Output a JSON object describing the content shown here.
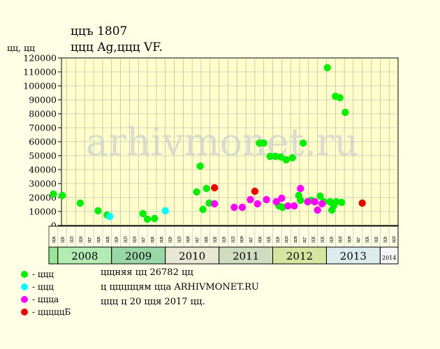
{
  "title": "ццъ 1807",
  "subtitle": "ццц Ag,ццц VF.",
  "ylabel": "цц, цц",
  "colors": {
    "background": "#ffffe6",
    "plot_background": "#ffffcc",
    "grid": "#a8a8a8",
    "green": "#00ee00",
    "cyan": "#00ffff",
    "magenta": "#ff00ff",
    "red": "#ee0000"
  },
  "legend": [
    {
      "label": "- ццц",
      "color": "#00ee00"
    },
    {
      "label": "- ццц",
      "color": "#00ffff"
    },
    {
      "label": "- ццца",
      "color": "#ff00ff"
    },
    {
      "label": "- цццццБ",
      "color": "#ee0000"
    }
  ],
  "notes": [
    "цщняя цц 26782 цц",
    "ц цццццям цца ARHIVMONET.RU",
    "ццц ц 20 цця 2017 цц."
  ],
  "watermark": "arhivmonet.ru",
  "chart_data": {
    "type": "scatter",
    "ylim": [
      0,
      120000
    ],
    "yticks": [
      0,
      10000,
      20000,
      30000,
      40000,
      50000,
      60000,
      70000,
      80000,
      90000,
      100000,
      110000,
      120000
    ],
    "month_labels": [
      "цц",
      "цв",
      "цр",
      "цп",
      "цц",
      "цн",
      "цл",
      "цг",
      "цн",
      "цк",
      "цб",
      "цк"
    ],
    "grid": true,
    "years": [
      {
        "label": "",
        "color": "#99e699",
        "months": 1
      },
      {
        "label": "2008",
        "color": "#b3ecb3",
        "months": 6
      },
      {
        "label": "2009",
        "color": "#99d6a8",
        "months": 6
      },
      {
        "label": "2010",
        "color": "#e6e6d2",
        "months": 6
      },
      {
        "label": "2011",
        "color": "#cfdcc0",
        "months": 6
      },
      {
        "label": "2012",
        "color": "#d6e6a0",
        "months": 6
      },
      {
        "label": "2013",
        "color": "#dcebeb",
        "months": 6
      },
      {
        "label": "2014",
        "color": "#f5f5f5",
        "months": 2
      }
    ],
    "series": [
      {
        "color": "#00ee00",
        "points": [
          [
            0,
            22500
          ],
          [
            1,
            21500
          ],
          [
            3,
            16000
          ],
          [
            5,
            10500
          ],
          [
            6,
            7500
          ],
          [
            10,
            8500
          ],
          [
            10.5,
            4500
          ],
          [
            11.3,
            5000
          ],
          [
            16,
            24000
          ],
          [
            16.4,
            42500
          ],
          [
            16.7,
            11500
          ],
          [
            17.1,
            26500
          ],
          [
            17.4,
            16000
          ],
          [
            23,
            59000
          ],
          [
            23.5,
            59000
          ],
          [
            24.2,
            49500
          ],
          [
            24.8,
            49500
          ],
          [
            25.2,
            14000
          ],
          [
            25.4,
            49000
          ],
          [
            25.6,
            13000
          ],
          [
            26,
            47000
          ],
          [
            26.7,
            48500
          ],
          [
            27.4,
            21500
          ],
          [
            27.6,
            18000
          ],
          [
            27.9,
            59000
          ],
          [
            28.8,
            18000
          ],
          [
            29.2,
            17000
          ],
          [
            29.8,
            21000
          ],
          [
            30.2,
            17000
          ],
          [
            30.6,
            113000
          ],
          [
            30.9,
            17000
          ],
          [
            31.1,
            11000
          ],
          [
            31.3,
            14000
          ],
          [
            31.5,
            92500
          ],
          [
            31.6,
            17000
          ],
          [
            32,
            91500
          ],
          [
            32.2,
            16500
          ],
          [
            32.6,
            81000
          ]
        ]
      },
      {
        "color": "#00ffff",
        "points": [
          [
            6.3,
            6500
          ],
          [
            12.5,
            10500
          ]
        ]
      },
      {
        "color": "#ff00ff",
        "points": [
          [
            18,
            15500
          ],
          [
            20.2,
            13000
          ],
          [
            21.1,
            13000
          ],
          [
            22,
            18500
          ],
          [
            22.8,
            15500
          ],
          [
            23.8,
            18500
          ],
          [
            24.9,
            17000
          ],
          [
            25.5,
            19500
          ],
          [
            26.2,
            14000
          ],
          [
            26.9,
            14000
          ],
          [
            27.6,
            26500
          ],
          [
            28.4,
            17000
          ],
          [
            29.2,
            17000
          ],
          [
            29.5,
            11000
          ],
          [
            30,
            15500
          ]
        ]
      },
      {
        "color": "#ee0000",
        "points": [
          [
            18,
            27000
          ],
          [
            22.5,
            24500
          ],
          [
            34.5,
            16000
          ]
        ]
      }
    ]
  }
}
